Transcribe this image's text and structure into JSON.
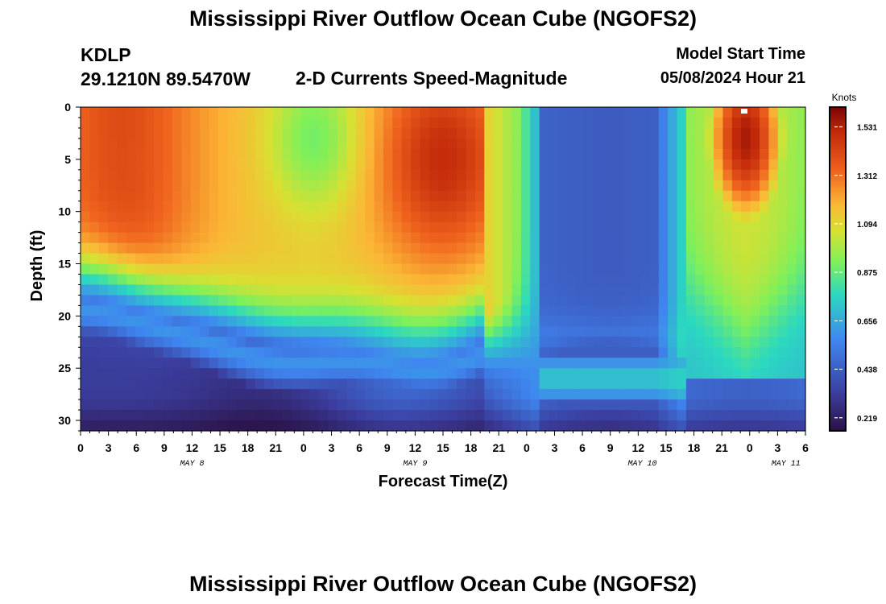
{
  "header": {
    "title": "Mississippi River Outflow Ocean Cube (NGOFS2)",
    "station": "KDLP",
    "coords": "29.1210N  89.5470W",
    "subtitle": "2-D Currents Speed-Magnitude",
    "model_start_label": "Model Start Time",
    "model_start_value": "05/08/2024 Hour 21"
  },
  "footer": {
    "title": "Mississippi River Outflow Ocean Cube (NGOFS2)"
  },
  "chart_data": {
    "type": "heatmap",
    "title": "2-D Currents Speed-Magnitude",
    "xlabel": "Forecast Time(Z)",
    "ylabel": "Depth (ft)",
    "x_tick_labels": [
      "0",
      "3",
      "6",
      "9",
      "12",
      "15",
      "18",
      "21",
      "0",
      "3",
      "6",
      "9",
      "12",
      "15",
      "18",
      "21",
      "0",
      "3",
      "6",
      "9",
      "12",
      "15",
      "18",
      "21",
      "0",
      "3",
      "6"
    ],
    "x_day_labels": [
      "MAY 8",
      "MAY 9",
      "MAY 10",
      "MAY 11"
    ],
    "y_tick_labels": [
      "0",
      "5",
      "10",
      "15",
      "20",
      "25",
      "30"
    ],
    "ylim": [
      0,
      31
    ],
    "colorbar": {
      "unit_label": "Knots",
      "ticks": [
        "1.531",
        "1.312",
        "1.094",
        "0.875",
        "0.656",
        "0.438",
        "0.219"
      ],
      "min": 0.16,
      "max": 1.62
    }
  }
}
